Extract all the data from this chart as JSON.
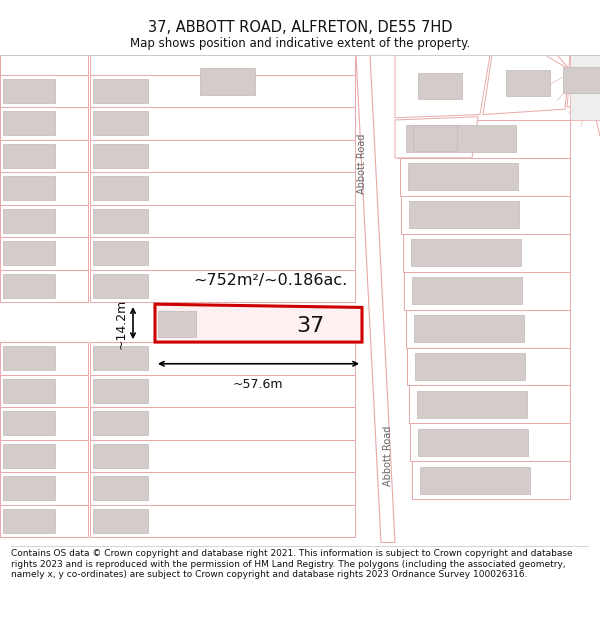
{
  "title_line1": "37, ABBOTT ROAD, ALFRETON, DE55 7HD",
  "title_line2": "Map shows position and indicative extent of the property.",
  "footer_text": "Contains OS data © Crown copyright and database right 2021. This information is subject to Crown copyright and database rights 2023 and is reproduced with the permission of HM Land Registry. The polygons (including the associated geometry, namely x, y co-ordinates) are subject to Crown copyright and database rights 2023 Ordnance Survey 100026316.",
  "bg": "#ffffff",
  "lc": "#e8a8a8",
  "bf": "#d4ccca",
  "be": "#c0b8b4",
  "rc": "#cc0000",
  "rf": "#ffffff",
  "road_gray": "#b0b0b0",
  "dim_area": "~752m²/~0.186ac.",
  "dim_w": "~57.6m",
  "dim_h": "~14.2m",
  "prop_num": "37",
  "road_lbl": "Abbott Road"
}
